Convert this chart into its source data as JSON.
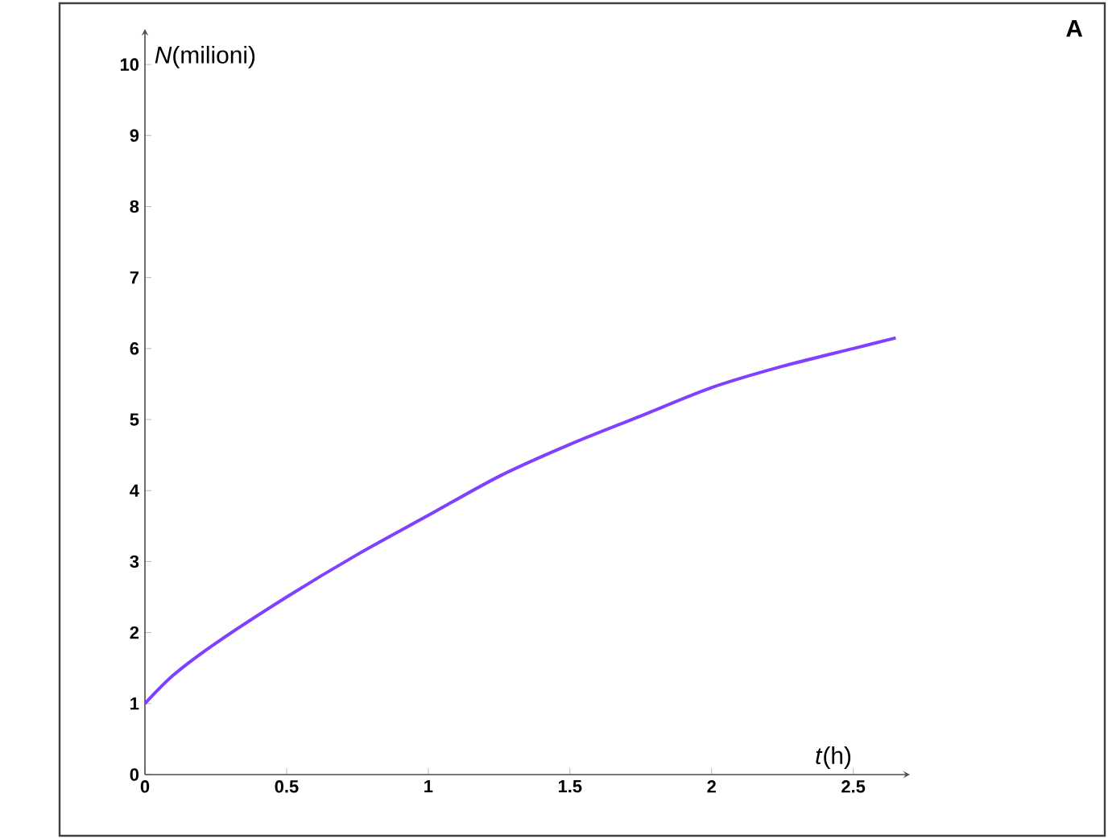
{
  "chart_data": {
    "type": "line",
    "xlabel": "*t*(h)",
    "ylabel": "*N*(milioni)",
    "annotations": [
      "A"
    ],
    "x": [
      0,
      0.1,
      0.25,
      0.5,
      0.75,
      1,
      1.25,
      1.5,
      1.75,
      2,
      2.25,
      2.5,
      2.65
    ],
    "series": [
      {
        "color": "#8040ff",
        "values": [
          1.0,
          1.4,
          1.85,
          2.5,
          3.1,
          3.65,
          4.2,
          4.65,
          5.05,
          5.45,
          5.75,
          6.0,
          6.15
        ]
      }
    ],
    "xlim": [
      0,
      2.7
    ],
    "ylim": [
      0,
      10.5
    ],
    "xticks": [
      0,
      0.5,
      1,
      1.5,
      2,
      2.5
    ],
    "yticks": [
      0,
      1,
      2,
      3,
      4,
      5,
      6,
      7,
      8,
      9,
      10
    ],
    "grid": false
  }
}
